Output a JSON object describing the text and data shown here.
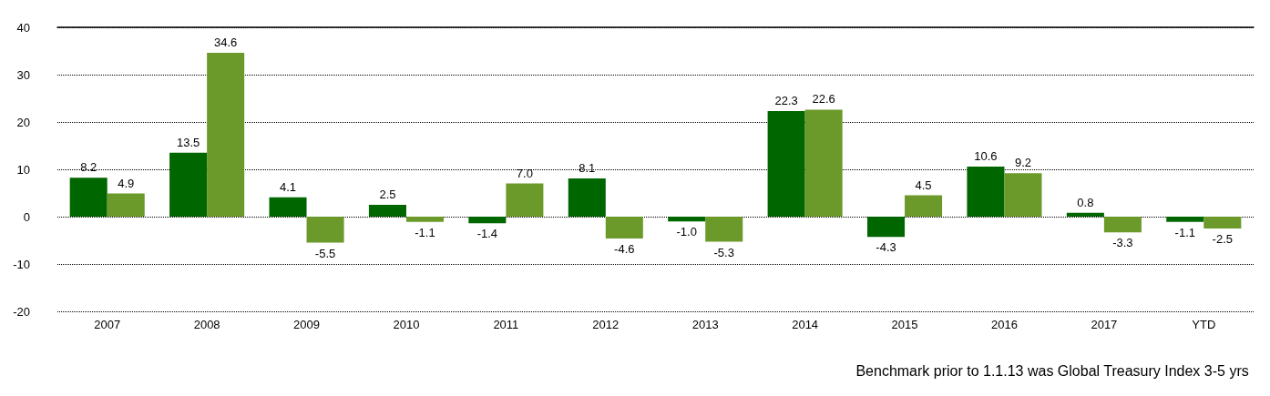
{
  "chart_data": {
    "type": "bar",
    "categories": [
      "2007",
      "2008",
      "2009",
      "2010",
      "2011",
      "2012",
      "2013",
      "2014",
      "2015",
      "2016",
      "2017",
      "YTD"
    ],
    "series": [
      {
        "color": "#006600",
        "values": [
          8.2,
          13.5,
          4.1,
          2.5,
          -1.4,
          8.1,
          -1.0,
          22.3,
          -4.3,
          10.6,
          0.8,
          -1.1
        ],
        "value_labels": [
          "8.2",
          "13.5",
          "4.1",
          "2.5",
          "-1.4",
          "8.1",
          "-1.0",
          "22.3",
          "-4.3",
          "10.6",
          "0.8",
          "-1.1"
        ]
      },
      {
        "color": "#6b9a2a",
        "values": [
          4.9,
          34.6,
          -5.5,
          -1.1,
          7.0,
          -4.6,
          -5.3,
          22.6,
          4.5,
          9.2,
          -3.3,
          -2.5
        ],
        "value_labels": [
          "4.9",
          "34.6",
          "-5.5",
          "-1.1",
          "7.0",
          "-4.6",
          "-5.3",
          "22.6",
          "4.5",
          "9.2",
          "-3.3",
          "-2.5"
        ]
      }
    ],
    "ylim": [
      -20,
      40
    ],
    "yticks": [
      -20,
      -10,
      0,
      10,
      20,
      30,
      40
    ],
    "grid": "y",
    "annotations": [
      "Benchmark prior to 1.1.13 was Global Treasury Index 3-5 yrs"
    ]
  }
}
